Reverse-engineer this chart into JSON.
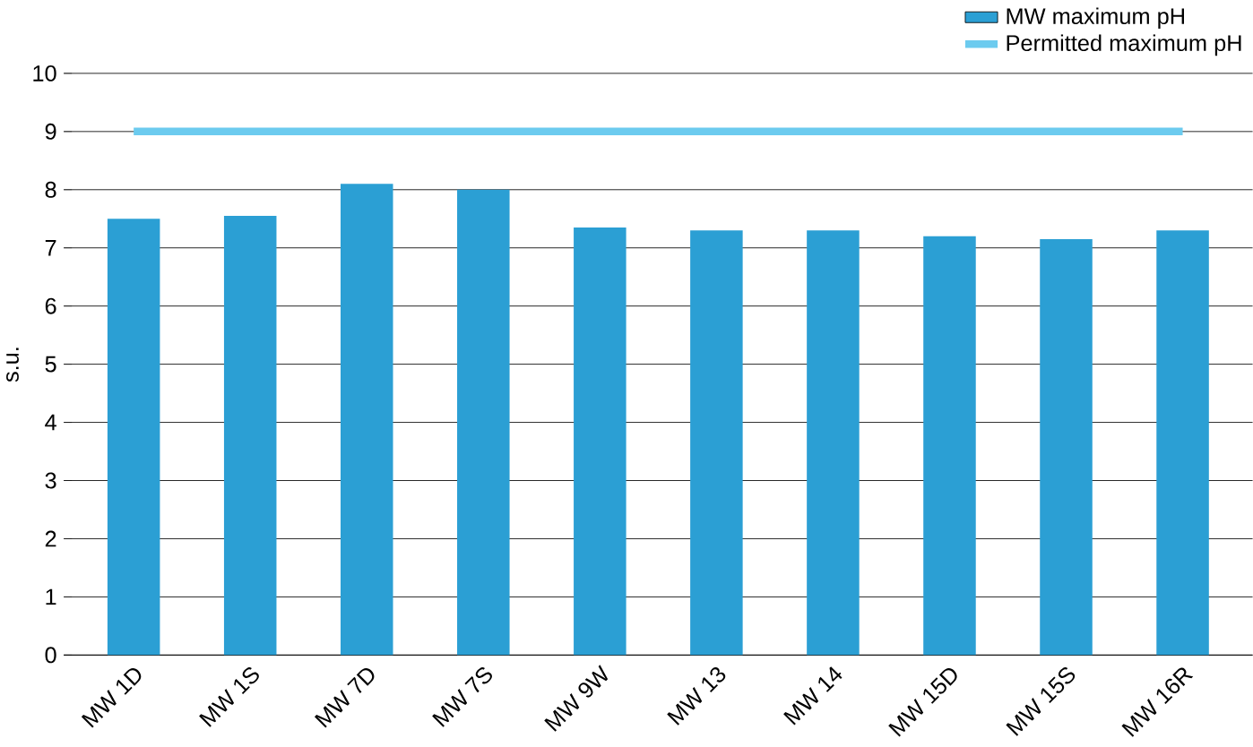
{
  "chart_data": {
    "type": "bar",
    "ylabel": "s.u.",
    "categories": [
      "MW 1D",
      "MW 1S",
      "MW 7D",
      "MW 7S",
      "MW 9W",
      "MW 13",
      "MW 14",
      "MW 15D",
      "MW 15S",
      "MW 16R"
    ],
    "series": [
      {
        "name": "MW maximum pH",
        "color": "#2b9fd4",
        "values": [
          7.5,
          7.55,
          8.1,
          8.0,
          7.35,
          7.3,
          7.3,
          7.2,
          7.15,
          7.3
        ]
      },
      {
        "name": "Permitted maximum pH",
        "type": "line",
        "color": "#6ccbef",
        "values": [
          9,
          9,
          9,
          9,
          9,
          9,
          9,
          9,
          9,
          9
        ]
      }
    ],
    "ylim": [
      0,
      10
    ],
    "yticks": [
      0,
      1,
      2,
      3,
      4,
      5,
      6,
      7,
      8,
      9,
      10
    ],
    "grid": "y",
    "legend": "top right"
  }
}
